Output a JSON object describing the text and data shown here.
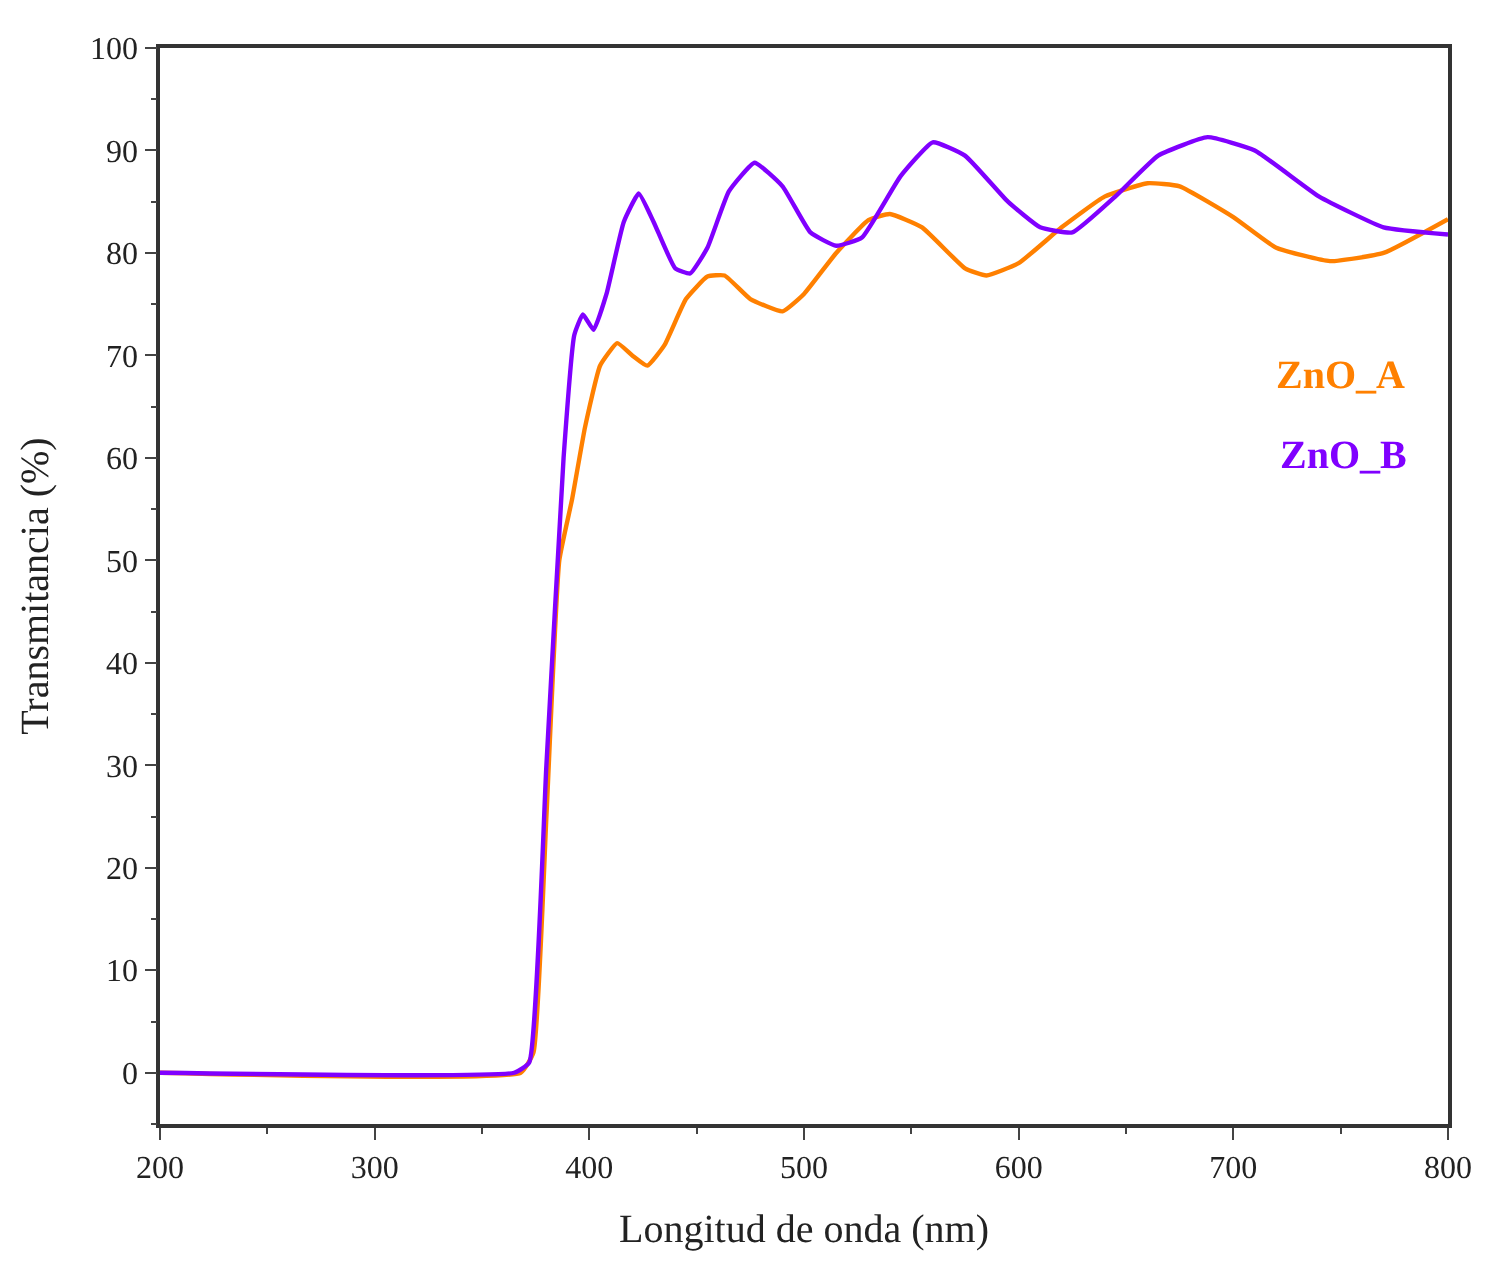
{
  "chart_data": {
    "type": "line",
    "xlabel": "Longitud de onda (nm)",
    "ylabel": "Transmitancia (%)",
    "xlim": [
      200,
      800
    ],
    "xticks": [
      200,
      300,
      400,
      500,
      600,
      700,
      800
    ],
    "ylim": [
      -5,
      100
    ],
    "yticks": [
      0,
      10,
      20,
      30,
      40,
      50,
      60,
      70,
      80,
      90,
      100
    ],
    "legend": false,
    "marker": "none",
    "line_style": "solid",
    "series": [
      {
        "name": "ZnO_A",
        "color": "#ff8000",
        "x": [
          200,
          368,
          374,
          380,
          386,
          392,
          398,
          405,
          413,
          420,
          427,
          435,
          445,
          455,
          463,
          475,
          490,
          500,
          515,
          530,
          540,
          555,
          575,
          585,
          600,
          620,
          640,
          660,
          675,
          700,
          720,
          745,
          770,
          800
        ],
        "values": [
          0,
          0,
          2,
          25,
          50,
          56,
          63,
          69,
          71.2,
          70,
          69,
          71,
          75.5,
          77.7,
          77.8,
          75.5,
          74.3,
          76,
          80,
          83.2,
          83.8,
          82.5,
          78.5,
          77.8,
          79,
          82.5,
          85.5,
          86.8,
          86.5,
          83.5,
          80.5,
          79.2,
          80,
          83.3
        ]
      },
      {
        "name": "ZnO_B",
        "color": "#8000ff",
        "x": [
          200,
          365,
          372,
          380,
          388,
          393,
          397,
          402,
          408,
          416,
          423,
          430,
          440,
          447,
          455,
          465,
          477,
          490,
          503,
          515,
          527,
          545,
          560,
          575,
          595,
          610,
          625,
          645,
          665,
          688,
          710,
          740,
          770,
          800
        ],
        "values": [
          0,
          0,
          1,
          30,
          60,
          72,
          74,
          72.5,
          76,
          83,
          85.8,
          83,
          78.5,
          78,
          80.5,
          86,
          88.8,
          86.5,
          82,
          80.7,
          81.5,
          87.5,
          90.8,
          89.5,
          85,
          82.5,
          82,
          85.5,
          89.5,
          91.3,
          90,
          85.5,
          82.5,
          81.8
        ]
      }
    ]
  }
}
